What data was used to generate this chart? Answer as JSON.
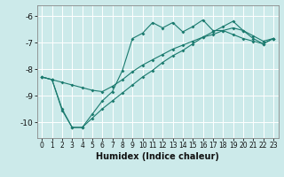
{
  "xlabel": "Humidex (Indice chaleur)",
  "background_color": "#cceaea",
  "line_color": "#1a7a6e",
  "grid_color": "#ffffff",
  "xlim": [
    -0.5,
    23.5
  ],
  "ylim": [
    -10.6,
    -5.6
  ],
  "yticks": [
    -10,
    -9,
    -8,
    -7,
    -6
  ],
  "xticks": [
    0,
    1,
    2,
    3,
    4,
    5,
    6,
    7,
    8,
    9,
    10,
    11,
    12,
    13,
    14,
    15,
    16,
    17,
    18,
    19,
    20,
    21,
    22,
    23
  ],
  "line1_x": [
    0,
    1,
    2,
    3,
    4,
    5,
    6,
    7,
    8,
    9,
    10,
    11,
    12,
    13,
    14,
    15,
    16,
    17,
    18,
    19,
    20,
    21,
    22,
    23
  ],
  "line1_y": [
    -8.3,
    -8.4,
    -9.5,
    -10.2,
    -10.2,
    -9.7,
    -9.2,
    -8.85,
    -8.05,
    -6.85,
    -6.65,
    -6.25,
    -6.45,
    -6.25,
    -6.6,
    -6.4,
    -6.15,
    -6.55,
    -6.55,
    -6.7,
    -6.85,
    -6.95,
    -7.05,
    -6.85
  ],
  "line2_x": [
    0,
    1,
    2,
    3,
    4,
    5,
    6,
    7,
    8,
    9,
    10,
    11,
    12,
    13,
    14,
    15,
    16,
    17,
    18,
    19,
    20,
    21,
    22,
    23
  ],
  "line2_y": [
    -8.3,
    -8.4,
    -8.5,
    -8.6,
    -8.7,
    -8.8,
    -8.85,
    -8.65,
    -8.4,
    -8.1,
    -7.85,
    -7.65,
    -7.45,
    -7.25,
    -7.1,
    -6.95,
    -6.8,
    -6.7,
    -6.55,
    -6.45,
    -6.55,
    -6.75,
    -6.95,
    -6.85
  ],
  "line3_x": [
    0,
    1,
    2,
    3,
    4,
    5,
    6,
    7,
    8,
    9,
    10,
    11,
    12,
    13,
    14,
    15,
    16,
    17,
    18,
    19,
    20,
    21,
    22,
    23
  ],
  "line3_y": [
    -8.3,
    -8.4,
    -9.55,
    -10.2,
    -10.2,
    -9.85,
    -9.5,
    -9.2,
    -8.9,
    -8.6,
    -8.3,
    -8.05,
    -7.75,
    -7.5,
    -7.3,
    -7.05,
    -6.8,
    -6.6,
    -6.4,
    -6.2,
    -6.55,
    -6.85,
    -7.05,
    -6.85
  ]
}
